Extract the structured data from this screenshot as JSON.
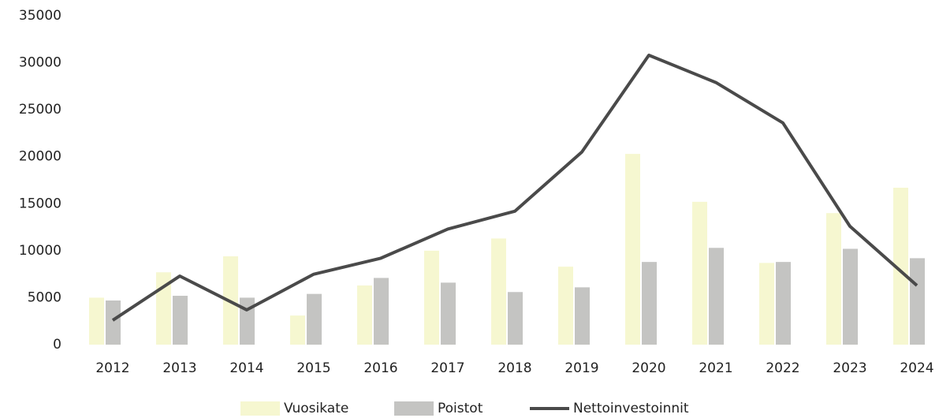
{
  "chart_data": {
    "type": "bar-line",
    "categories": [
      "2012",
      "2013",
      "2014",
      "2015",
      "2016",
      "2017",
      "2018",
      "2019",
      "2020",
      "2021",
      "2022",
      "2023",
      "2024"
    ],
    "series": [
      {
        "name": "Vuosikate",
        "type": "bar",
        "color": "#f6f7d0",
        "values": [
          5000,
          7700,
          9400,
          3100,
          6300,
          10000,
          11300,
          8300,
          20300,
          15200,
          8700,
          14000,
          16700
        ]
      },
      {
        "name": "Poistot",
        "type": "bar",
        "color": "#c4c4c2",
        "values": [
          4700,
          5200,
          5000,
          5400,
          7100,
          6600,
          5600,
          6100,
          8800,
          10300,
          8800,
          10200,
          9200
        ]
      },
      {
        "name": "Nettoinvestoinnit",
        "type": "line",
        "color": "#4a4a4a",
        "values": [
          2600,
          7300,
          3700,
          7500,
          9200,
          12300,
          14200,
          20500,
          30800,
          27900,
          23600,
          12600,
          6300
        ]
      }
    ],
    "ylim": [
      0,
      35000
    ],
    "yticks": [
      0,
      5000,
      10000,
      15000,
      20000,
      25000,
      30000,
      35000
    ],
    "grid": false,
    "legend": "bottom"
  }
}
